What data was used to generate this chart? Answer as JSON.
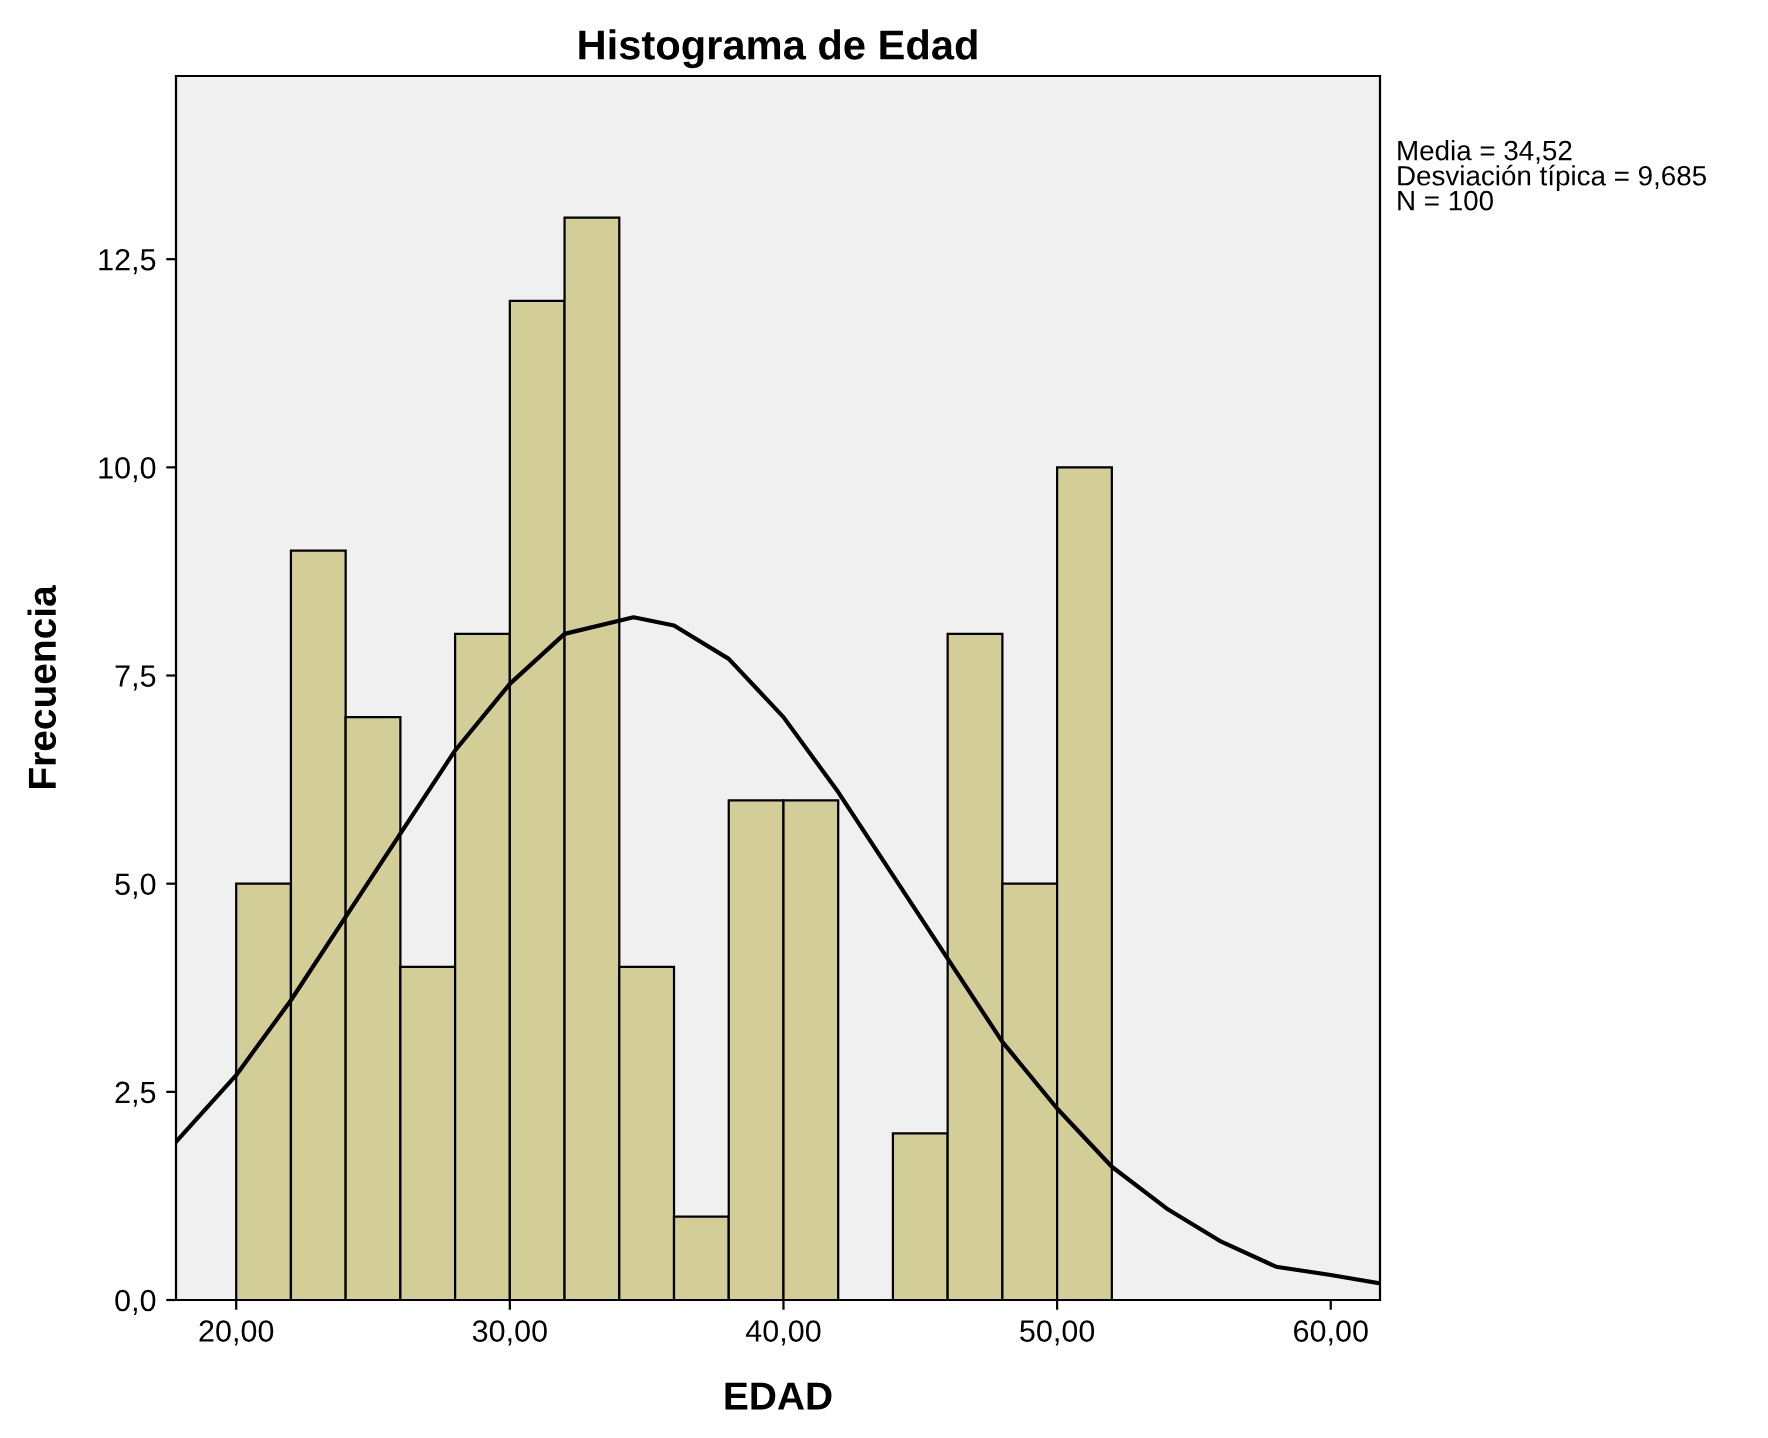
{
  "chart_data": {
    "type": "histogram",
    "title": "Histograma de Edad",
    "xlabel": "EDAD",
    "ylabel": "Frecuencia",
    "series": [
      {
        "color": "#d3ce97",
        "bins": [
          20,
          22,
          24,
          26,
          28,
          30,
          32,
          34,
          36,
          38,
          40,
          42,
          44,
          46,
          48,
          50,
          52
        ],
        "values": [
          5,
          9,
          7,
          4,
          8,
          12,
          13,
          4,
          1,
          6,
          6,
          0,
          2,
          8,
          5,
          10
        ]
      },
      {
        "type": "line",
        "color": "#000000",
        "x": [
          17.8,
          20,
          22,
          24,
          26,
          28,
          30,
          32,
          34.52,
          36,
          38,
          40,
          42,
          44,
          46,
          48,
          50,
          52,
          54,
          56,
          58,
          60,
          61.8
        ],
        "values": [
          1.9,
          2.7,
          3.6,
          4.6,
          5.6,
          6.6,
          7.4,
          8.0,
          8.2,
          8.1,
          7.7,
          7.0,
          6.1,
          5.1,
          4.1,
          3.1,
          2.3,
          1.6,
          1.1,
          0.7,
          0.4,
          0.3,
          0.2
        ]
      }
    ],
    "xlim": [
      17.8,
      61.8
    ],
    "ylim": [
      0,
      14.7
    ],
    "xticks": [
      {
        "value": 20,
        "label": "20,00"
      },
      {
        "value": 30,
        "label": "30,00"
      },
      {
        "value": 40,
        "label": "40,00"
      },
      {
        "value": 50,
        "label": "50,00"
      },
      {
        "value": 60,
        "label": "60,00"
      }
    ],
    "yticks": [
      {
        "value": 0,
        "label": "0,0"
      },
      {
        "value": 2.5,
        "label": "2,5"
      },
      {
        "value": 5,
        "label": "5,0"
      },
      {
        "value": 7.5,
        "label": "7,5"
      },
      {
        "value": 10,
        "label": "10,0"
      },
      {
        "value": 12.5,
        "label": "12,5"
      }
    ],
    "grid": false,
    "annotations": [
      "Media = 34,52\nDesviación típica = 9,685\nN = 100"
    ]
  }
}
